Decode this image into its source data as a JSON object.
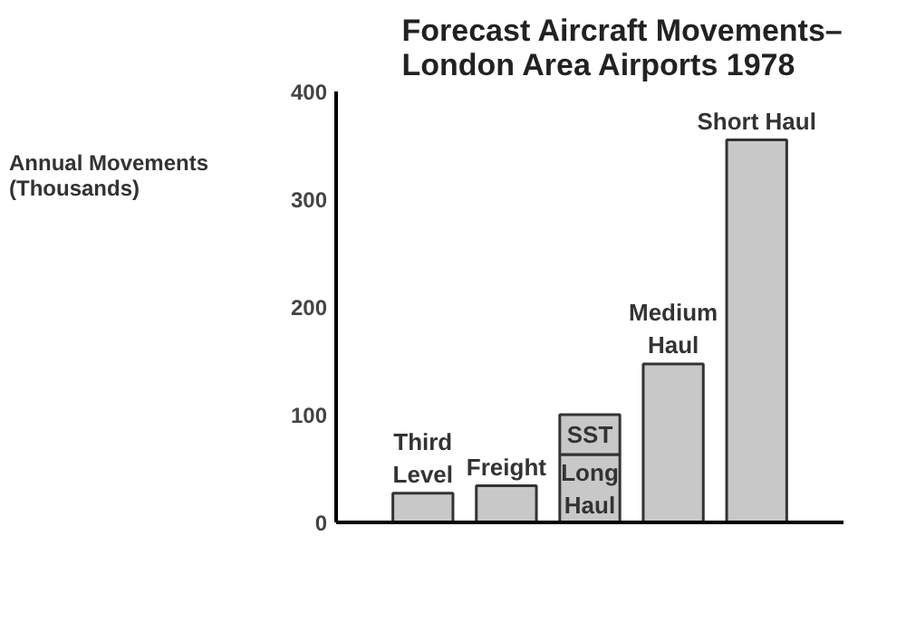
{
  "chart_data": {
    "type": "bar",
    "stacked": true,
    "title": "Forecast Aircraft Movements–\nLondon Area Airports 1978",
    "ylabel": "Annual Movements\n(Thousands)",
    "categories": [
      "Third\nLevel",
      "Freight",
      null,
      "Medium\nHaul",
      "Short Haul"
    ],
    "series": [
      {
        "name": "Long\nHaul",
        "color": "#c8c8c8",
        "values": [
          27,
          34,
          63,
          147,
          355
        ]
      },
      {
        "name": "SST",
        "color": "#c8c8c8",
        "values": [
          null,
          null,
          37,
          null,
          null
        ]
      }
    ],
    "ylim": [
      0,
      400
    ],
    "yticks": [
      0,
      100,
      200,
      300,
      400
    ],
    "grid": false
  }
}
